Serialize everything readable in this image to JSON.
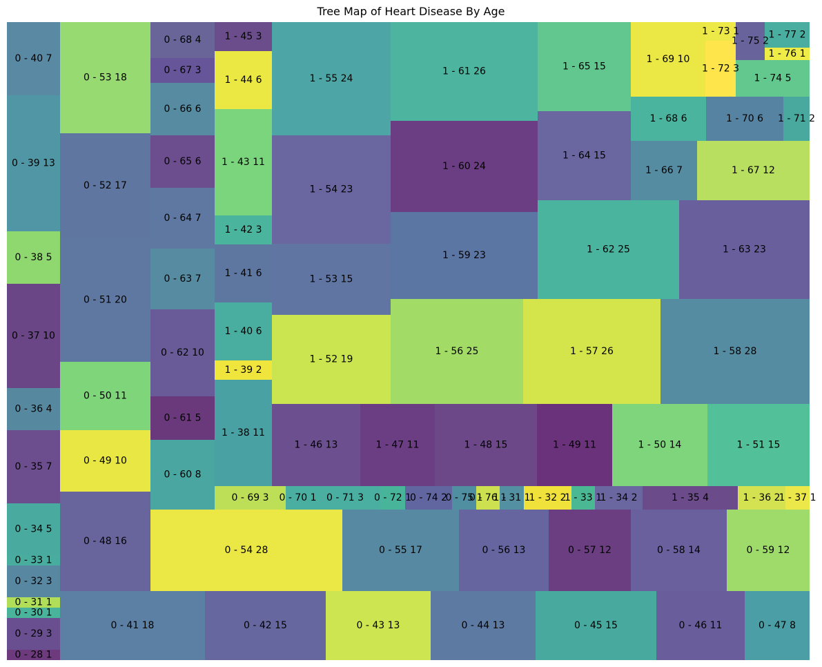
{
  "chart_data": {
    "type": "treemap",
    "title": "Tree Map of Heart Disease By Age",
    "grid": false,
    "legend": "none",
    "cells": [
      {
        "label": "0 - 40 7",
        "target": 0,
        "age": 40,
        "count": 7,
        "color": "#5a89a4"
      },
      {
        "label": "0 - 39 13",
        "target": 0,
        "age": 39,
        "count": 13,
        "color": "#5096a4"
      },
      {
        "label": "0 - 38 5",
        "target": 0,
        "age": 38,
        "count": 5,
        "color": "#8fd870"
      },
      {
        "label": "0 - 37 10",
        "target": 0,
        "age": 37,
        "count": 10,
        "color": "#6b4686"
      },
      {
        "label": "0 - 36 4",
        "target": 0,
        "age": 36,
        "count": 4,
        "color": "#56899f"
      },
      {
        "label": "0 - 35 7",
        "target": 0,
        "age": 35,
        "count": 7,
        "color": "#6c4d8d"
      },
      {
        "label": "0 - 34 5",
        "target": 0,
        "age": 34,
        "count": 5,
        "color": "#49ab9f"
      },
      {
        "label": "0 - 33 1",
        "target": 0,
        "age": 33,
        "count": 1,
        "color": "#48ad9e"
      },
      {
        "label": "0 - 32 3",
        "target": 0,
        "age": 32,
        "count": 3,
        "color": "#5787a1"
      },
      {
        "label": "0 - 31 1",
        "target": 0,
        "age": 31,
        "count": 1,
        "color": "#b0de59"
      },
      {
        "label": "0 - 30 1",
        "target": 0,
        "age": 30,
        "count": 1,
        "color": "#49b39c"
      },
      {
        "label": "0 - 29 3",
        "target": 0,
        "age": 29,
        "count": 3,
        "color": "#6a4f90"
      },
      {
        "label": "0 - 28 1",
        "target": 0,
        "age": 28,
        "count": 1,
        "color": "#6d3a7e"
      },
      {
        "label": "0 - 53 18",
        "target": 0,
        "age": 53,
        "count": 18,
        "color": "#97da71"
      },
      {
        "label": "0 - 52 17",
        "target": 0,
        "age": 52,
        "count": 17,
        "color": "#5e76a0"
      },
      {
        "label": "0 - 51 20",
        "target": 0,
        "age": 51,
        "count": 20,
        "color": "#5e78a1"
      },
      {
        "label": "0 - 50 11",
        "target": 0,
        "age": 50,
        "count": 11,
        "color": "#7fd57a"
      },
      {
        "label": "0 - 49 10",
        "target": 0,
        "age": 49,
        "count": 10,
        "color": "#e9e743"
      },
      {
        "label": "0 - 48 16",
        "target": 0,
        "age": 48,
        "count": 16,
        "color": "#68659d"
      },
      {
        "label": "0 - 68 4",
        "target": 0,
        "age": 68,
        "count": 4,
        "color": "#6a6599"
      },
      {
        "label": "0 - 67 3",
        "target": 0,
        "age": 67,
        "count": 3,
        "color": "#67559a"
      },
      {
        "label": "0 - 66 6",
        "target": 0,
        "age": 66,
        "count": 6,
        "color": "#568ba1"
      },
      {
        "label": "0 - 65 6",
        "target": 0,
        "age": 65,
        "count": 6,
        "color": "#6c4d8d"
      },
      {
        "label": "0 - 64 7",
        "target": 0,
        "age": 64,
        "count": 7,
        "color": "#5e78a1"
      },
      {
        "label": "0 - 63 7",
        "target": 0,
        "age": 63,
        "count": 7,
        "color": "#578ba1"
      },
      {
        "label": "0 - 62 10",
        "target": 0,
        "age": 62,
        "count": 10,
        "color": "#695a98"
      },
      {
        "label": "0 - 61 5",
        "target": 0,
        "age": 61,
        "count": 5,
        "color": "#6a397c"
      },
      {
        "label": "0 - 60 8",
        "target": 0,
        "age": 60,
        "count": 8,
        "color": "#49a6a1"
      },
      {
        "label": "1 - 45 3",
        "target": 1,
        "age": 45,
        "count": 3,
        "color": "#6b4d8b"
      },
      {
        "label": "1 - 44 6",
        "target": 1,
        "age": 44,
        "count": 6,
        "color": "#ebe743"
      },
      {
        "label": "1 - 43 11",
        "target": 1,
        "age": 43,
        "count": 11,
        "color": "#7ad57d"
      },
      {
        "label": "1 - 42 3",
        "target": 1,
        "age": 42,
        "count": 3,
        "color": "#4ab49c"
      },
      {
        "label": "1 - 41 6",
        "target": 1,
        "age": 41,
        "count": 6,
        "color": "#5e77a1"
      },
      {
        "label": "1 - 40 6",
        "target": 1,
        "age": 40,
        "count": 6,
        "color": "#49ad9f"
      },
      {
        "label": "1 - 39 2",
        "target": 1,
        "age": 39,
        "count": 2,
        "color": "#f0e53d"
      },
      {
        "label": "1 - 38 11",
        "target": 1,
        "age": 38,
        "count": 11,
        "color": "#4aa1a3"
      },
      {
        "label": "1 - 55 24",
        "target": 1,
        "age": 55,
        "count": 24,
        "color": "#4ea5a5"
      },
      {
        "label": "1 - 54 23",
        "target": 1,
        "age": 54,
        "count": 23,
        "color": "#6a66a0"
      },
      {
        "label": "1 - 53 15",
        "target": 1,
        "age": 53,
        "count": 15,
        "color": "#6075a2"
      },
      {
        "label": "1 - 52 19",
        "target": 1,
        "age": 52,
        "count": 19,
        "color": "#cbe551"
      },
      {
        "label": "1 - 61 26",
        "target": 1,
        "age": 61,
        "count": 26,
        "color": "#4db59f"
      },
      {
        "label": "1 - 60 24",
        "target": 1,
        "age": 60,
        "count": 24,
        "color": "#6b3d82"
      },
      {
        "label": "1 - 59 23",
        "target": 1,
        "age": 59,
        "count": 23,
        "color": "#5c76a4"
      },
      {
        "label": "1 - 65 15",
        "target": 1,
        "age": 65,
        "count": 15,
        "color": "#62c78f"
      },
      {
        "label": "1 - 64 15",
        "target": 1,
        "age": 64,
        "count": 15,
        "color": "#6a66a0"
      },
      {
        "label": "1 - 69 10",
        "target": 1,
        "age": 69,
        "count": 10,
        "color": "#ebe745"
      },
      {
        "label": "1 - 73 1",
        "target": 1,
        "age": 73,
        "count": 1,
        "color": "#ede948"
      },
      {
        "label": "1 - 72 3",
        "target": 1,
        "age": 72,
        "count": 3,
        "color": "#fde54b"
      },
      {
        "label": "1 - 75 2",
        "target": 1,
        "age": 75,
        "count": 2,
        "color": "#69639c"
      },
      {
        "label": "1 - 77 2",
        "target": 1,
        "age": 77,
        "count": 2,
        "color": "#49aea0"
      },
      {
        "label": "1 - 76 1",
        "target": 1,
        "age": 76,
        "count": 1,
        "color": "#f0ec47"
      },
      {
        "label": "1 - 74 5",
        "target": 1,
        "age": 74,
        "count": 5,
        "color": "#63c88d"
      },
      {
        "label": "1 - 68 6",
        "target": 1,
        "age": 68,
        "count": 6,
        "color": "#4ab49e"
      },
      {
        "label": "1 - 70 6",
        "target": 1,
        "age": 70,
        "count": 6,
        "color": "#5583a1"
      },
      {
        "label": "1 - 71 2",
        "target": 1,
        "age": 71,
        "count": 2,
        "color": "#4aa99e"
      },
      {
        "label": "1 - 66 7",
        "target": 1,
        "age": 66,
        "count": 7,
        "color": "#568ca2"
      },
      {
        "label": "1 - 67 12",
        "target": 1,
        "age": 67,
        "count": 12,
        "color": "#b8df5f"
      },
      {
        "label": "1 - 62 25",
        "target": 1,
        "age": 62,
        "count": 25,
        "color": "#4ab49e"
      },
      {
        "label": "1 - 63 23",
        "target": 1,
        "age": 63,
        "count": 23,
        "color": "#695f9c"
      },
      {
        "label": "1 - 56 25",
        "target": 1,
        "age": 56,
        "count": 25,
        "color": "#a3db67"
      },
      {
        "label": "1 - 57 26",
        "target": 1,
        "age": 57,
        "count": 26,
        "color": "#d4e54b"
      },
      {
        "label": "1 - 58 28",
        "target": 1,
        "age": 58,
        "count": 28,
        "color": "#568ca2"
      },
      {
        "label": "1 - 46 13",
        "target": 1,
        "age": 46,
        "count": 13,
        "color": "#6b4f8f"
      },
      {
        "label": "1 - 47 11",
        "target": 1,
        "age": 47,
        "count": 11,
        "color": "#6b3e83"
      },
      {
        "label": "1 - 48 15",
        "target": 1,
        "age": 48,
        "count": 15,
        "color": "#6d4889"
      },
      {
        "label": "1 - 49 11",
        "target": 1,
        "age": 49,
        "count": 11,
        "color": "#6a327a"
      },
      {
        "label": "1 - 50 14",
        "target": 1,
        "age": 50,
        "count": 14,
        "color": "#7ed57b"
      },
      {
        "label": "1 - 51 15",
        "target": 1,
        "age": 51,
        "count": 15,
        "color": "#52c098"
      },
      {
        "label": "0 - 69 3",
        "target": 0,
        "age": 69,
        "count": 3,
        "color": "#bddf57"
      },
      {
        "label": "0 - 70 1",
        "target": 0,
        "age": 70,
        "count": 1,
        "color": "#4aaea0"
      },
      {
        "label": "0 - 71 3",
        "target": 0,
        "age": 71,
        "count": 3,
        "color": "#4aaea0"
      },
      {
        "label": "0 - 72 1",
        "target": 0,
        "age": 72,
        "count": 1,
        "color": "#48b49a"
      },
      {
        "label": "0 - 74 2",
        "target": 0,
        "age": 74,
        "count": 2,
        "color": "#6266a0"
      },
      {
        "label": "0 - 75 1",
        "target": 0,
        "age": 75,
        "count": 1,
        "color": "#4f8fa1"
      },
      {
        "label": "0 - 76 1",
        "target": 0,
        "age": 76,
        "count": 1,
        "color": "#cde04f"
      },
      {
        "label": "1 - 31 1",
        "target": 1,
        "age": 31,
        "count": 1,
        "color": "#5390a2"
      },
      {
        "label": "1 - 32 2",
        "target": 1,
        "age": 32,
        "count": 2,
        "color": "#f0e23b"
      },
      {
        "label": "1 - 33 1",
        "target": 1,
        "age": 33,
        "count": 1,
        "color": "#4ab893"
      },
      {
        "label": "1 - 34 2",
        "target": 1,
        "age": 34,
        "count": 2,
        "color": "#6a66a0"
      },
      {
        "label": "1 - 35 4",
        "target": 1,
        "age": 35,
        "count": 4,
        "color": "#6b4b8a"
      },
      {
        "label": "1 - 36 2",
        "target": 1,
        "age": 36,
        "count": 2,
        "color": "#d4e251"
      },
      {
        "label": "1 - 37 1",
        "target": 1,
        "age": 37,
        "count": 1,
        "color": "#ece84a"
      },
      {
        "label": "0 - 54 28",
        "target": 0,
        "age": 54,
        "count": 28,
        "color": "#ebe745"
      },
      {
        "label": "0 - 55 17",
        "target": 0,
        "age": 55,
        "count": 17,
        "color": "#578aa2"
      },
      {
        "label": "0 - 56 13",
        "target": 0,
        "age": 56,
        "count": 13,
        "color": "#6665a0"
      },
      {
        "label": "0 - 57 12",
        "target": 0,
        "age": 57,
        "count": 12,
        "color": "#6b3e82"
      },
      {
        "label": "0 - 58 14",
        "target": 0,
        "age": 58,
        "count": 14,
        "color": "#69609d"
      },
      {
        "label": "0 - 59 12",
        "target": 0,
        "age": 59,
        "count": 12,
        "color": "#9fdb6a"
      },
      {
        "label": "0 - 41 18",
        "target": 0,
        "age": 41,
        "count": 18,
        "color": "#5c80a3"
      },
      {
        "label": "0 - 42 15",
        "target": 0,
        "age": 42,
        "count": 15,
        "color": "#67679f"
      },
      {
        "label": "0 - 43 13",
        "target": 0,
        "age": 43,
        "count": 13,
        "color": "#cde551"
      },
      {
        "label": "0 - 44 13",
        "target": 0,
        "age": 44,
        "count": 13,
        "color": "#5d7ba2"
      },
      {
        "label": "0 - 45 15",
        "target": 0,
        "age": 45,
        "count": 15,
        "color": "#48aa9f"
      },
      {
        "label": "0 - 46 11",
        "target": 0,
        "age": 46,
        "count": 11,
        "color": "#6a5d9c"
      },
      {
        "label": "0 - 47 8",
        "target": 0,
        "age": 47,
        "count": 8,
        "color": "#4b9ea6"
      }
    ]
  }
}
